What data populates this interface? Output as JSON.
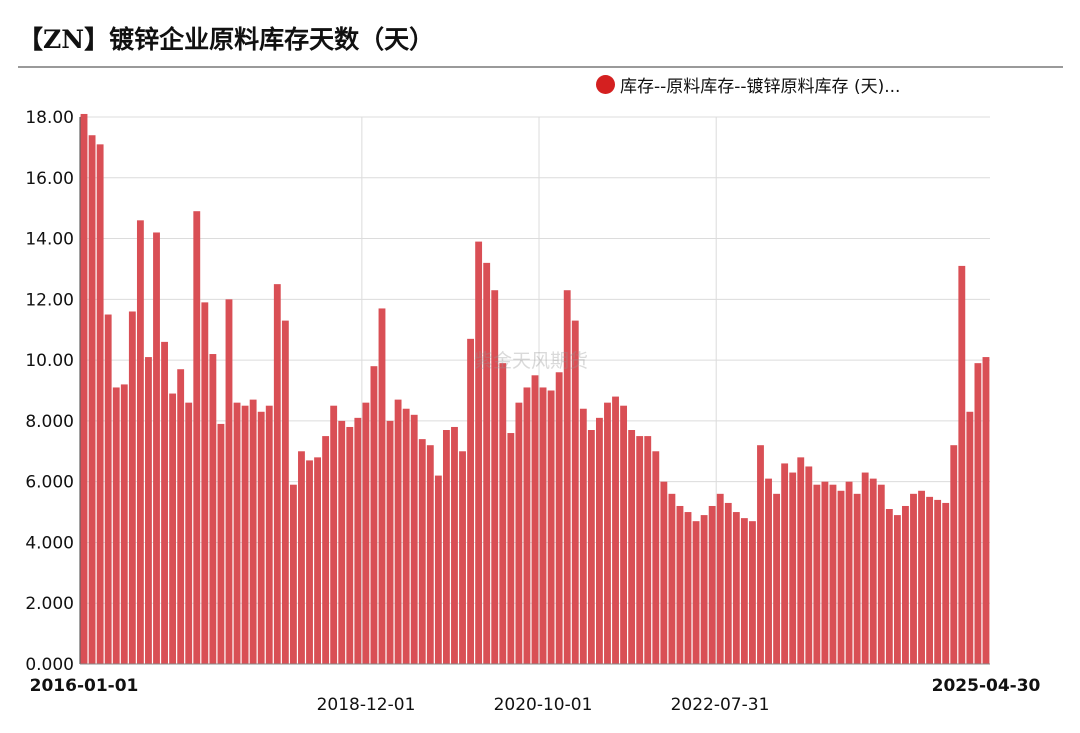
{
  "title": "【ZN】镀锌企业原料库存天数（天）",
  "watermark": "紫金天风期货",
  "chart_data": {
    "type": "bar",
    "title": "【ZN】镀锌企业原料库存天数（天）",
    "xlabel": "",
    "ylabel": "",
    "ylim": [
      0,
      18
    ],
    "yticks": [
      "0.000",
      "2.000",
      "4.000",
      "6.000",
      "8.000",
      "10.00",
      "12.00",
      "14.00",
      "16.00",
      "18.00"
    ],
    "xticks": [
      {
        "label": "2016-01-01",
        "bold": true
      },
      {
        "label": "2018-12-01",
        "bold": false
      },
      {
        "label": "2020-10-01",
        "bold": false
      },
      {
        "label": "2022-07-31",
        "bold": false
      },
      {
        "label": "2025-04-30",
        "bold": true
      }
    ],
    "grid": true,
    "legend_position": "top-right",
    "color": "#d94f55",
    "series": [
      {
        "name": "库存--原料库存--镀锌原料库存 (天)...",
        "values": [
          18.1,
          17.4,
          17.1,
          11.5,
          9.1,
          9.2,
          11.6,
          14.6,
          10.1,
          14.2,
          10.6,
          8.9,
          9.7,
          8.6,
          14.9,
          11.9,
          10.2,
          7.9,
          12.0,
          8.6,
          8.5,
          8.7,
          8.3,
          8.5,
          12.5,
          11.3,
          5.9,
          7.0,
          6.7,
          6.8,
          7.5,
          8.5,
          8.0,
          7.8,
          8.1,
          8.6,
          9.8,
          11.7,
          8.0,
          8.7,
          8.4,
          8.2,
          7.4,
          7.2,
          6.2,
          7.7,
          7.8,
          7.0,
          10.7,
          13.9,
          13.2,
          12.3,
          9.9,
          7.6,
          8.6,
          9.1,
          9.5,
          9.1,
          9.0,
          9.6,
          12.3,
          11.3,
          8.4,
          7.7,
          8.1,
          8.6,
          8.8,
          8.5,
          7.7,
          7.5,
          7.5,
          7.0,
          6.0,
          5.6,
          5.2,
          5.0,
          4.7,
          4.9,
          5.2,
          5.6,
          5.3,
          5.0,
          4.8,
          4.7,
          7.2,
          6.1,
          5.6,
          6.6,
          6.3,
          6.8,
          6.5,
          5.9,
          6.0,
          5.9,
          5.7,
          6.0,
          5.6,
          6.3,
          6.1,
          5.9,
          5.1,
          4.9,
          5.2,
          5.6,
          5.7,
          5.5,
          5.4,
          5.3,
          7.2,
          13.1,
          8.3,
          9.9,
          10.1
        ]
      }
    ]
  }
}
